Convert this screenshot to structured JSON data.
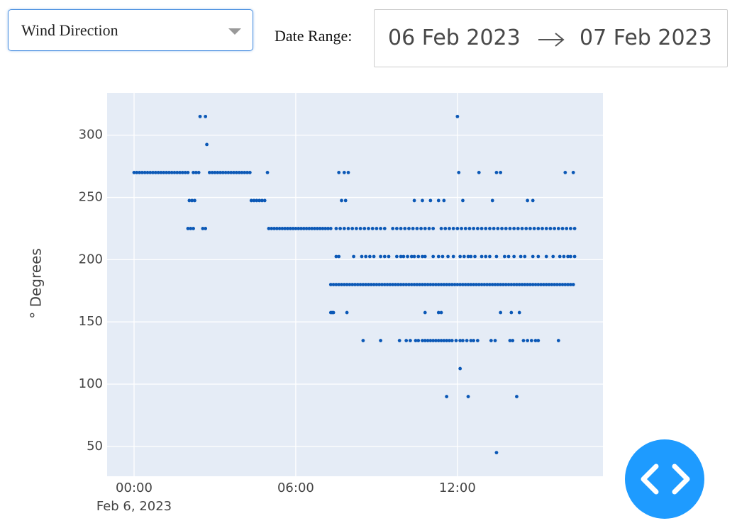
{
  "controls": {
    "dropdown": "Wind Direction",
    "date_range_label": "Date Range:",
    "start_date": "06 Feb 2023",
    "end_date": "07 Feb 2023"
  },
  "chart_data": {
    "type": "scatter",
    "ylabel": "° Degrees",
    "x_date_label": "Feb 6, 2023",
    "color": "#0b58b6",
    "grid": true,
    "xlim": [
      -1,
      17.4
    ],
    "ylim": [
      26,
      334
    ],
    "xticks": [
      {
        "value": 0,
        "label": "00:00"
      },
      {
        "value": 6,
        "label": "06:00"
      },
      {
        "value": 12,
        "label": "12:00"
      }
    ],
    "yticks": [
      50,
      100,
      150,
      200,
      250,
      300
    ],
    "x": [
      0,
      0.1,
      0.2,
      0.3,
      0.4,
      0.5,
      0.6,
      0.7,
      0.8,
      0.9,
      1,
      1.1,
      1.2,
      1.3,
      1.4,
      1.5,
      1.6,
      1.7,
      1.8,
      1.9,
      2,
      2.2,
      2.3,
      2.4,
      2.8,
      2.9,
      3,
      3.1,
      3.2,
      3.3,
      3.4,
      3.5,
      3.6,
      3.7,
      3.8,
      3.9,
      4,
      4.1,
      4.2,
      4.3,
      4.95,
      7.6,
      7.8,
      7.95,
      12.05,
      12.8,
      13.45,
      13.6,
      16,
      16.3,
      2.45,
      2.65,
      12,
      2.7,
      2.05,
      2.15,
      2.25,
      4.35,
      4.45,
      4.55,
      4.65,
      4.75,
      4.85,
      7.7,
      7.85,
      10.4,
      10.7,
      11,
      11.3,
      11.5,
      12.2,
      13.3,
      14.6,
      14.8,
      2,
      2.1,
      2.2,
      2.55,
      2.65,
      5,
      5.1,
      5.2,
      5.3,
      5.4,
      5.5,
      5.6,
      5.7,
      5.8,
      5.9,
      6,
      6.1,
      6.2,
      6.3,
      6.4,
      6.5,
      6.6,
      6.7,
      6.8,
      6.9,
      7,
      7.1,
      7.2,
      7.3,
      7.5,
      7.65,
      7.8,
      7.95,
      8.1,
      8.25,
      8.4,
      8.55,
      8.7,
      8.85,
      9,
      9.15,
      9.3,
      9.6,
      9.75,
      9.9,
      10.05,
      10.2,
      10.35,
      10.5,
      10.65,
      10.8,
      10.95,
      11.1,
      11.4,
      11.55,
      11.7,
      11.85,
      12,
      12.15,
      12.3,
      12.45,
      12.6,
      12.75,
      12.9,
      13.05,
      13.2,
      13.35,
      13.5,
      13.65,
      13.8,
      13.95,
      14.1,
      14.25,
      14.4,
      14.55,
      14.7,
      14.85,
      15,
      15.15,
      15.3,
      15.45,
      15.6,
      15.75,
      15.9,
      16.05,
      16.2,
      16.35,
      7.5,
      7.6,
      8.15,
      8.45,
      8.6,
      8.75,
      8.9,
      9.15,
      9.3,
      9.45,
      9.75,
      9.9,
      10,
      10.15,
      10.3,
      10.4,
      10.55,
      10.7,
      10.8,
      11.1,
      11.3,
      11.45,
      11.65,
      11.85,
      12.1,
      12.25,
      12.4,
      12.5,
      12.65,
      12.9,
      13.05,
      13.2,
      13.45,
      13.75,
      13.9,
      14.1,
      14.35,
      14.5,
      14.8,
      15,
      15.3,
      15.55,
      15.8,
      15.95,
      16.1,
      16.2,
      16.35,
      7.3,
      7.4,
      7.5,
      7.6,
      7.7,
      7.8,
      7.9,
      8,
      8.1,
      8.2,
      8.3,
      8.4,
      8.5,
      8.6,
      8.7,
      8.8,
      8.9,
      9,
      9.1,
      9.2,
      9.3,
      9.4,
      9.5,
      9.6,
      9.7,
      9.8,
      9.9,
      10,
      10.1,
      10.2,
      10.3,
      10.4,
      10.5,
      10.6,
      10.7,
      10.8,
      10.9,
      11,
      11.1,
      11.2,
      11.3,
      11.4,
      11.5,
      11.6,
      11.7,
      11.8,
      11.9,
      12,
      12.1,
      12.2,
      12.3,
      12.4,
      12.5,
      12.6,
      12.7,
      12.8,
      12.9,
      13,
      13.1,
      13.2,
      13.3,
      13.4,
      13.5,
      13.6,
      13.7,
      13.8,
      13.9,
      14,
      14.1,
      14.2,
      14.3,
      14.4,
      14.5,
      14.6,
      14.7,
      14.8,
      14.9,
      15,
      15.1,
      15.2,
      15.3,
      15.4,
      15.5,
      15.6,
      15.7,
      15.8,
      15.9,
      16,
      16.1,
      16.2,
      16.3,
      7.3,
      7.35,
      7.4,
      7.9,
      10.8,
      11.3,
      11.4,
      13.6,
      14,
      14.3,
      8.5,
      9.15,
      9.85,
      10.1,
      10.25,
      10.45,
      10.55,
      10.7,
      10.8,
      10.9,
      11,
      11.1,
      11.2,
      11.3,
      11.4,
      11.5,
      11.6,
      11.7,
      11.8,
      11.95,
      12.1,
      12.2,
      12.35,
      12.5,
      12.6,
      12.75,
      13.25,
      13.4,
      13.95,
      14.05,
      14.45,
      14.6,
      14.75,
      14.9,
      15,
      15.75,
      12.1,
      11.6,
      12.4,
      14.2,
      13.45
    ],
    "values": [
      270,
      270,
      270,
      270,
      270,
      270,
      270,
      270,
      270,
      270,
      270,
      270,
      270,
      270,
      270,
      270,
      270,
      270,
      270,
      270,
      270,
      270,
      270,
      270,
      270,
      270,
      270,
      270,
      270,
      270,
      270,
      270,
      270,
      270,
      270,
      270,
      270,
      270,
      270,
      270,
      270,
      270,
      270,
      270,
      270,
      270,
      270,
      270,
      270,
      270,
      315,
      315,
      315,
      292.5,
      247.5,
      247.5,
      247.5,
      247.5,
      247.5,
      247.5,
      247.5,
      247.5,
      247.5,
      247.5,
      247.5,
      247.5,
      247.5,
      247.5,
      247.5,
      247.5,
      247.5,
      247.5,
      247.5,
      247.5,
      225,
      225,
      225,
      225,
      225,
      225,
      225,
      225,
      225,
      225,
      225,
      225,
      225,
      225,
      225,
      225,
      225,
      225,
      225,
      225,
      225,
      225,
      225,
      225,
      225,
      225,
      225,
      225,
      225,
      225,
      225,
      225,
      225,
      225,
      225,
      225,
      225,
      225,
      225,
      225,
      225,
      225,
      225,
      225,
      225,
      225,
      225,
      225,
      225,
      225,
      225,
      225,
      225,
      225,
      225,
      225,
      225,
      225,
      225,
      225,
      225,
      225,
      225,
      225,
      225,
      225,
      225,
      225,
      225,
      225,
      225,
      225,
      225,
      225,
      225,
      225,
      225,
      225,
      225,
      225,
      225,
      225,
      225,
      225,
      225,
      225,
      225,
      202.5,
      202.5,
      202.5,
      202.5,
      202.5,
      202.5,
      202.5,
      202.5,
      202.5,
      202.5,
      202.5,
      202.5,
      202.5,
      202.5,
      202.5,
      202.5,
      202.5,
      202.5,
      202.5,
      202.5,
      202.5,
      202.5,
      202.5,
      202.5,
      202.5,
      202.5,
      202.5,
      202.5,
      202.5,
      202.5,
      202.5,
      202.5,
      202.5,
      202.5,
      202.5,
      202.5,
      202.5,
      202.5,
      202.5,
      202.5,
      202.5,
      202.5,
      202.5,
      202.5,
      202.5,
      202.5,
      202.5,
      180,
      180,
      180,
      180,
      180,
      180,
      180,
      180,
      180,
      180,
      180,
      180,
      180,
      180,
      180,
      180,
      180,
      180,
      180,
      180,
      180,
      180,
      180,
      180,
      180,
      180,
      180,
      180,
      180,
      180,
      180,
      180,
      180,
      180,
      180,
      180,
      180,
      180,
      180,
      180,
      180,
      180,
      180,
      180,
      180,
      180,
      180,
      180,
      180,
      180,
      180,
      180,
      180,
      180,
      180,
      180,
      180,
      180,
      180,
      180,
      180,
      180,
      180,
      180,
      180,
      180,
      180,
      180,
      180,
      180,
      180,
      180,
      180,
      180,
      180,
      180,
      180,
      180,
      180,
      180,
      180,
      180,
      180,
      180,
      180,
      180,
      180,
      180,
      180,
      180,
      180,
      157.5,
      157.5,
      157.5,
      157.5,
      157.5,
      157.5,
      157.5,
      157.5,
      157.5,
      157.5,
      135,
      135,
      135,
      135,
      135,
      135,
      135,
      135,
      135,
      135,
      135,
      135,
      135,
      135,
      135,
      135,
      135,
      135,
      135,
      135,
      135,
      135,
      135,
      135,
      135,
      135,
      135,
      135,
      135,
      135,
      135,
      135,
      135,
      135,
      135,
      135,
      112.5,
      90,
      90,
      90,
      45
    ]
  }
}
